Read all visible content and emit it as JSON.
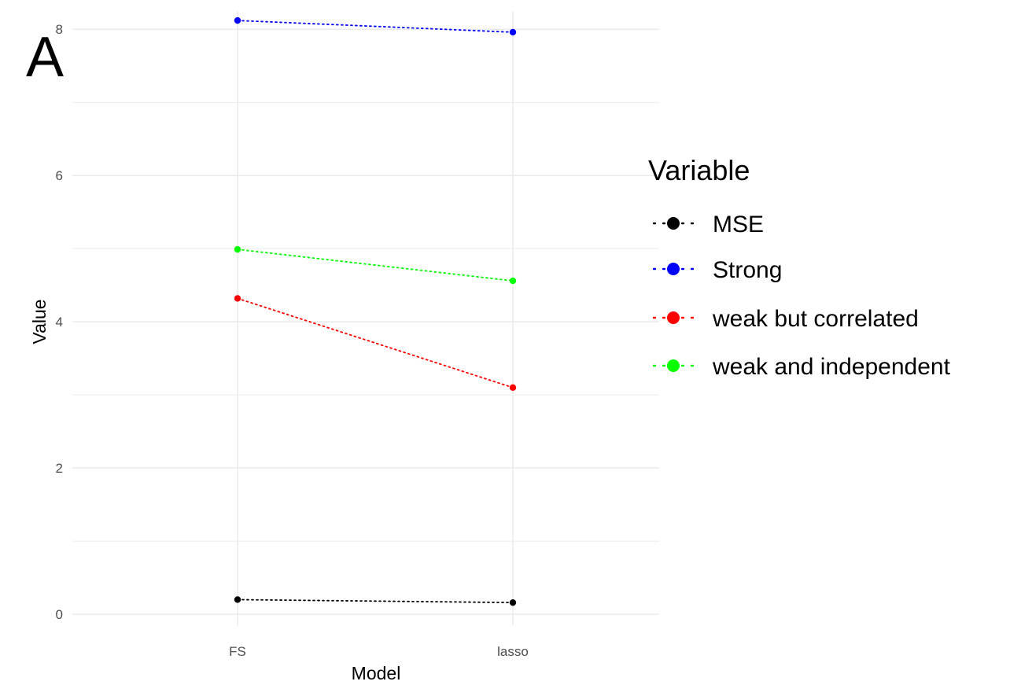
{
  "panel_label": "A",
  "colors": {
    "grid": "#ebebeb",
    "MSE": "#000000",
    "Strong": "#0000ff",
    "weak but correlated": "#ff0000",
    "weak and independent": "#00ff00"
  },
  "chart_data": {
    "type": "line",
    "x": [
      "FS",
      "lasso"
    ],
    "xlabel": "Model",
    "ylabel": "Value",
    "ylim": [
      -0.15,
      8.25
    ],
    "y_ticks": [
      0,
      2,
      4,
      6,
      8
    ],
    "y_minor_ticks": [
      1,
      3,
      5,
      7
    ],
    "grid": true,
    "line_style": "dotted",
    "legend": {
      "title": "Variable",
      "position": "right"
    },
    "series": [
      {
        "name": "MSE",
        "values": [
          0.2,
          0.16
        ]
      },
      {
        "name": "Strong",
        "values": [
          8.12,
          7.96
        ]
      },
      {
        "name": "weak but correlated",
        "values": [
          4.32,
          3.1
        ]
      },
      {
        "name": "weak and independent",
        "values": [
          4.99,
          4.56
        ]
      }
    ]
  }
}
